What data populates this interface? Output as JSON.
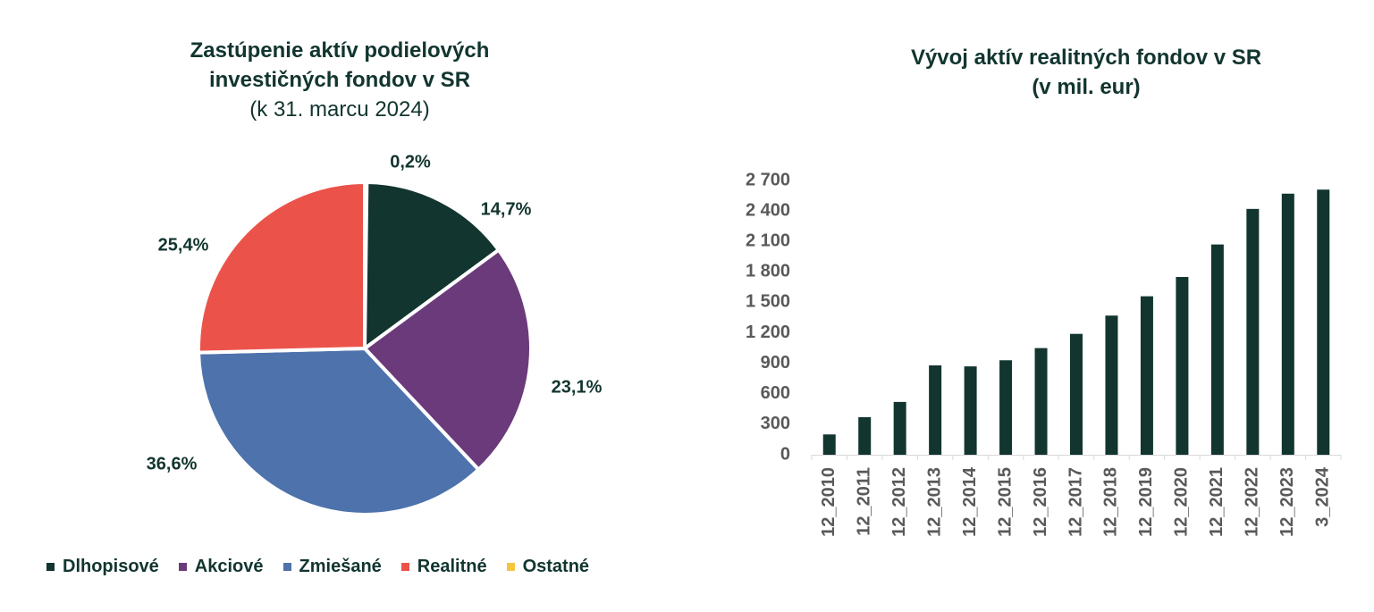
{
  "chart_data": [
    {
      "type": "pie",
      "title": "Zastúpenie aktív podielových investičných fondov v SR",
      "subtitle": "(k 31. marcu 2024)",
      "slices": [
        {
          "name": "Ostatné",
          "value": 0.2,
          "label": "0,2%",
          "color": "#f5c542"
        },
        {
          "name": "Dlhopisové",
          "value": 14.7,
          "label": "14,7%",
          "color": "#12352f"
        },
        {
          "name": "Akciové",
          "value": 23.1,
          "label": "23,1%",
          "color": "#6b3a7a"
        },
        {
          "name": "Zmiešané",
          "value": 36.6,
          "label": "36,6%",
          "color": "#4e72ab"
        },
        {
          "name": "Realitné",
          "value": 25.4,
          "label": "25,4%",
          "color": "#eb534a"
        }
      ],
      "legend": [
        {
          "label": "Dlhopisové",
          "color": "#12352f"
        },
        {
          "label": "Akciové",
          "color": "#6b3a7a"
        },
        {
          "label": "Zmiešané",
          "color": "#4e72ab"
        },
        {
          "label": "Realitné",
          "color": "#eb534a"
        },
        {
          "label": "Ostatné",
          "color": "#f5c542"
        }
      ]
    },
    {
      "type": "bar",
      "title": "Vývoj aktív realitných fondov v SR",
      "subtitle": "(v mil. eur)",
      "categories": [
        "12_2010",
        "12_2011",
        "12_2012",
        "12_2013",
        "12_2014",
        "12_2015",
        "12_2016",
        "12_2017",
        "12_2018",
        "12_2019",
        "12_2020",
        "12_2021",
        "12_2022",
        "12_2023",
        "3_2024"
      ],
      "values": [
        200,
        370,
        520,
        880,
        870,
        930,
        1050,
        1190,
        1370,
        1560,
        1750,
        2070,
        2420,
        2570,
        2610
      ],
      "ylim": [
        0,
        2700
      ],
      "yticks": [
        0,
        300,
        600,
        900,
        1200,
        1500,
        1800,
        2100,
        2400,
        2700
      ],
      "ytick_labels": [
        "0",
        "300",
        "600",
        "900",
        "1 200",
        "1 500",
        "1 800",
        "2 100",
        "2 400",
        "2 700"
      ],
      "bar_color": "#12352f",
      "xlabel": "",
      "ylabel": ""
    }
  ]
}
